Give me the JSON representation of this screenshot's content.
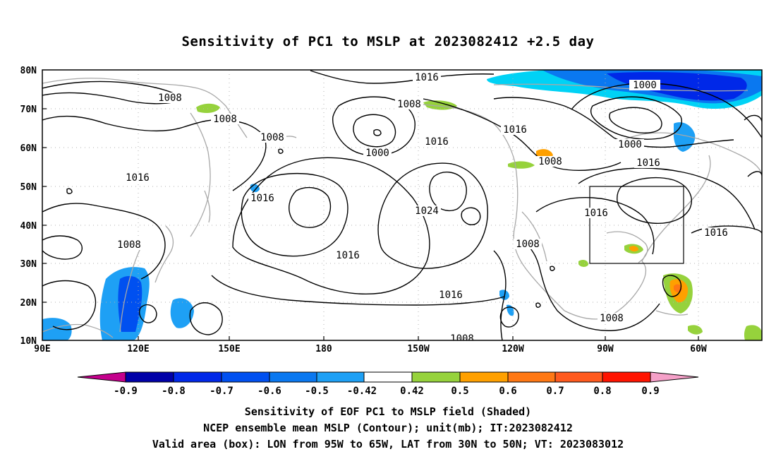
{
  "title": "Sensitivity of PC1 to MSLP at 2023082412 +2.5 day",
  "lat_labels": [
    "80N",
    "70N",
    "60N",
    "50N",
    "40N",
    "30N",
    "20N",
    "10N"
  ],
  "lon_labels": [
    "90E",
    "120E",
    "150E",
    "180",
    "150W",
    "120W",
    "90W",
    "60W"
  ],
  "contour_labels": [
    "1008",
    "1008",
    "1008",
    "1016",
    "1016",
    "1016",
    "1016",
    "1016",
    "1016",
    "1016",
    "1016",
    "1008",
    "1000",
    "1000",
    "1000",
    "1024",
    "1008",
    "1008",
    "1008",
    "1008",
    "1016"
  ],
  "colorbar": {
    "labels": [
      "-0.9",
      "-0.8",
      "-0.7",
      "-0.6",
      "-0.5",
      "-0.42",
      "0.42",
      "0.5",
      "0.6",
      "0.7",
      "0.8",
      "0.9"
    ],
    "colors": [
      "#c4008c",
      "#0000a8",
      "#0028e8",
      "#0050f0",
      "#0a78f0",
      "#1ea0f5",
      "#00d2f5",
      "#ffffff",
      "#96d23c",
      "#ffa000",
      "#ff7814",
      "#ff5a1e",
      "#ff1400",
      "#f5a0c8"
    ]
  },
  "captions": {
    "line1": "Sensitivity of EOF PC1 to MSLP field (Shaded)",
    "line2": "NCEP ensemble mean MSLP (Contour); unit(mb); IT:2023082412",
    "line3": "Valid area (box): LON from 95W to 65W, LAT from 30N to 50N; VT: 2023083012"
  }
}
